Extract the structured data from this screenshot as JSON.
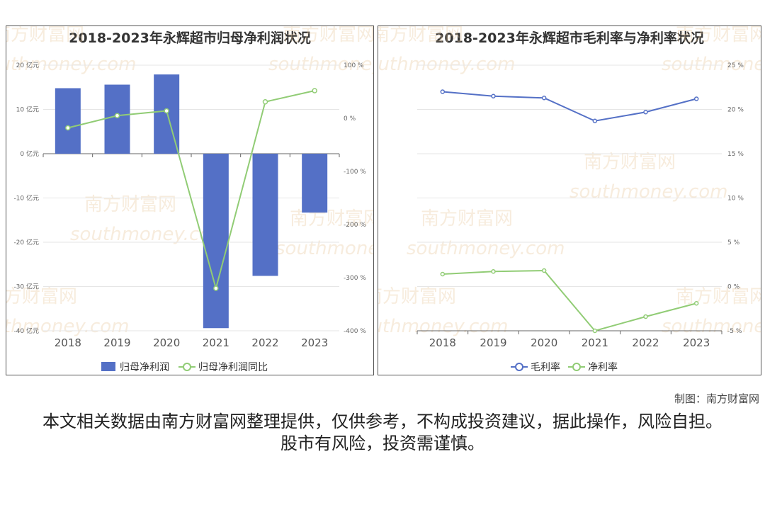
{
  "credit": "制图：南方财富网",
  "disclaimer": "本文相关数据由南方财富网整理提供，仅供参考，不构成投资建议，据此操作，风险自担。股市有风险，投资需谨慎。",
  "watermark": {
    "cn": "南方财富网",
    "en": "southmoney.com"
  },
  "chart_data": [
    {
      "type": "bar",
      "title": "2018-2023年永辉超市归母净利润状况",
      "categories": [
        "2018",
        "2019",
        "2020",
        "2021",
        "2022",
        "2023"
      ],
      "left_axis": {
        "ticks": [
          "20 亿元",
          "10 亿元",
          "0 亿元",
          "-10 亿元",
          "-20 亿元",
          "-30 亿元",
          "-40 亿元"
        ],
        "ylim": [
          -40,
          20
        ]
      },
      "right_axis": {
        "ticks": [
          "100 %",
          "0 %",
          "-100 %",
          "-200 %",
          "-300 %",
          "-400 %"
        ],
        "ylim": [
          -400,
          100
        ]
      },
      "series": [
        {
          "name": "归母净利润",
          "kind": "bar",
          "axis": "left",
          "color": "#5470c6",
          "values": [
            14.8,
            15.6,
            17.9,
            -39.4,
            -27.6,
            -13.3
          ]
        },
        {
          "name": "归母净利润同比",
          "kind": "line",
          "axis": "right",
          "color": "#91cc75",
          "values": [
            -18,
            5,
            14,
            -320,
            31,
            52
          ]
        }
      ],
      "grid": true,
      "legend": "bottom"
    },
    {
      "type": "line",
      "title": "2018-2023年永辉超市毛利率与净利率状况",
      "categories": [
        "2018",
        "2019",
        "2020",
        "2021",
        "2022",
        "2023"
      ],
      "right_axis": {
        "ticks": [
          "25 %",
          "20 %",
          "15 %",
          "10 %",
          "5 %",
          "0 %",
          "-5 %"
        ],
        "ylim": [
          -5,
          25
        ]
      },
      "series": [
        {
          "name": "毛利率",
          "color": "#5470c6",
          "values": [
            22.0,
            21.5,
            21.3,
            18.7,
            19.7,
            21.2
          ]
        },
        {
          "name": "净利率",
          "color": "#91cc75",
          "values": [
            1.4,
            1.7,
            1.8,
            -5.0,
            -3.4,
            -1.9
          ]
        }
      ],
      "grid": true,
      "legend": "bottom"
    }
  ]
}
